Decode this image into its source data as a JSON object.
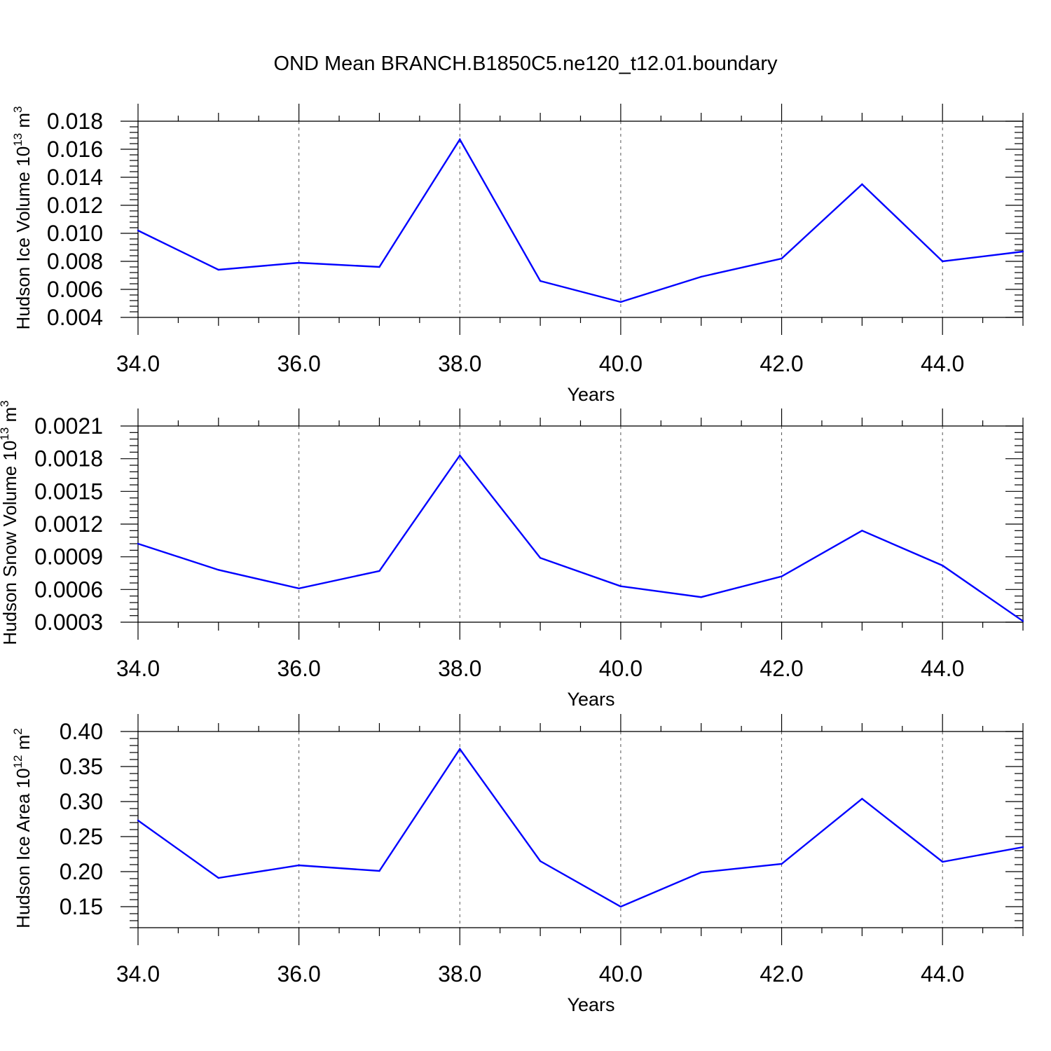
{
  "title": "OND Mean BRANCH.B1850C5.ne120_t12.01.boundary",
  "chart_data": [
    {
      "type": "line",
      "ylabel": {
        "text": "Hudson Ice Volume 10",
        "sup": "13",
        "unit": " m",
        "unit_sup": "3"
      },
      "xlabel": "Years",
      "xlim": [
        34,
        45
      ],
      "ylim": [
        0.004,
        0.018
      ],
      "x_ticks": [
        "34.0",
        "36.0",
        "38.0",
        "40.0",
        "42.0",
        "44.0"
      ],
      "y_ticks": [
        "0.004",
        "0.006",
        "0.008",
        "0.010",
        "0.012",
        "0.014",
        "0.016",
        "0.018"
      ],
      "x": [
        34,
        35,
        36,
        37,
        38,
        39,
        40,
        41,
        42,
        43,
        44,
        45
      ],
      "y": [
        0.0102,
        0.0074,
        0.0079,
        0.0076,
        0.0167,
        0.0066,
        0.0051,
        0.0069,
        0.0082,
        0.0135,
        0.008,
        0.0087
      ],
      "line_color": "#0000ff"
    },
    {
      "type": "line",
      "ylabel": {
        "text": "Hudson Snow Volume 10",
        "sup": "13",
        "unit": " m",
        "unit_sup": "3"
      },
      "xlabel": "Years",
      "xlim": [
        34,
        45
      ],
      "ylim": [
        0.0003,
        0.0021
      ],
      "x_ticks": [
        "34.0",
        "36.0",
        "38.0",
        "40.0",
        "42.0",
        "44.0"
      ],
      "y_ticks": [
        "0.0003",
        "0.0006",
        "0.0009",
        "0.0012",
        "0.0015",
        "0.0018",
        "0.0021"
      ],
      "x": [
        34,
        35,
        36,
        37,
        38,
        39,
        40,
        41,
        42,
        43,
        44,
        45
      ],
      "y": [
        0.00102,
        0.00078,
        0.00061,
        0.00077,
        0.00183,
        0.00089,
        0.00063,
        0.00053,
        0.00072,
        0.00114,
        0.00082,
        0.00031
      ],
      "line_color": "#0000ff"
    },
    {
      "type": "line",
      "ylabel": {
        "text": "Hudson Ice Area 10",
        "sup": "12",
        "unit": " m",
        "unit_sup": "2"
      },
      "xlabel": "Years",
      "xlim": [
        34,
        45
      ],
      "ylim": [
        0.12,
        0.4
      ],
      "x_ticks": [
        "34.0",
        "36.0",
        "38.0",
        "40.0",
        "42.0",
        "44.0"
      ],
      "y_ticks": [
        "0.15",
        "0.20",
        "0.25",
        "0.30",
        "0.35",
        "0.40"
      ],
      "x": [
        34,
        35,
        36,
        37,
        38,
        39,
        40,
        41,
        42,
        43,
        44,
        45
      ],
      "y": [
        0.273,
        0.191,
        0.209,
        0.201,
        0.375,
        0.215,
        0.15,
        0.199,
        0.211,
        0.304,
        0.214,
        0.235
      ],
      "line_color": "#0000ff"
    }
  ]
}
